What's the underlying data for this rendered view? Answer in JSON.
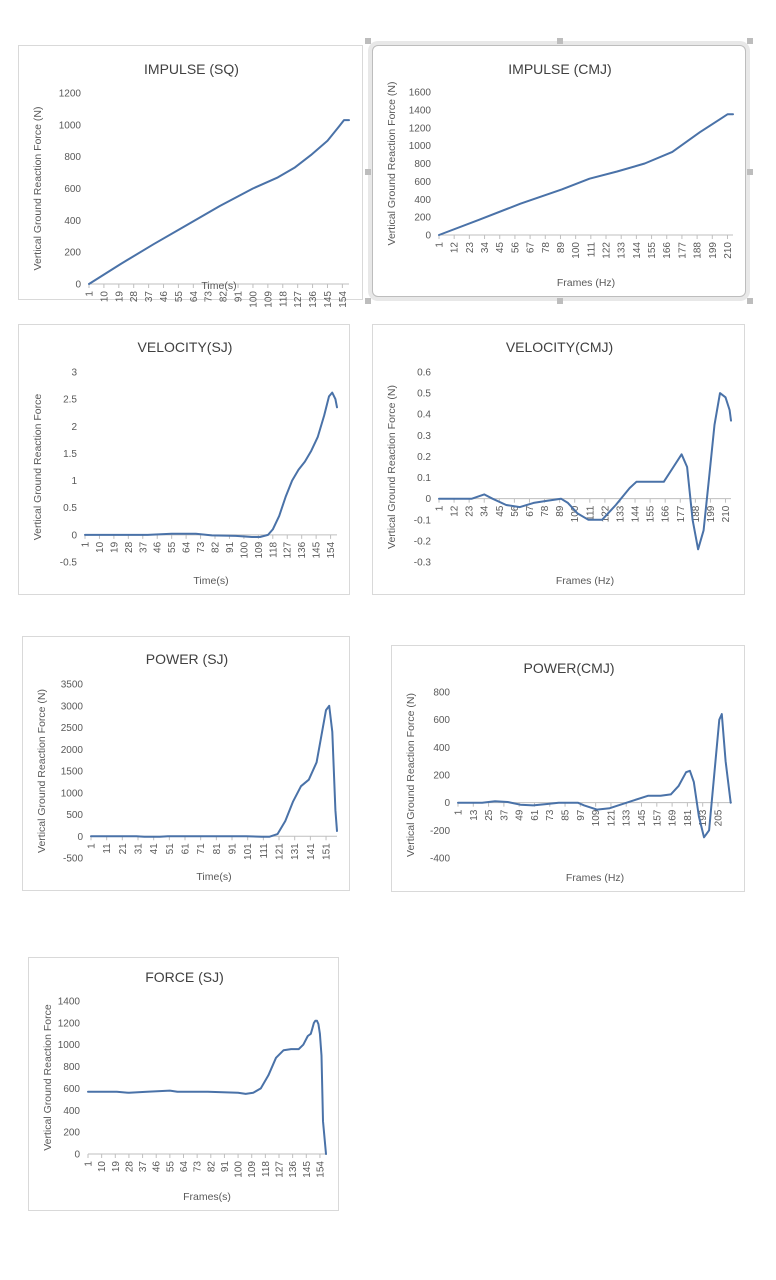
{
  "colors": {
    "line": "#4a72a8",
    "axis": "#bfbfbf",
    "grid": "#d9d9d9",
    "text": "#595959",
    "title": "#404040"
  },
  "chart_data": [
    {
      "id": "impulse-sq",
      "type": "line",
      "title": "IMPULSE (SQ)",
      "xlabel": "Time(s)",
      "ylabel": "Vertical Ground Reaction Force (N)",
      "ylim": [
        0,
        1200
      ],
      "yticks": [
        0,
        200,
        400,
        600,
        800,
        1000,
        1200
      ],
      "xmin": 1,
      "xmax": 158,
      "xticks": [
        "1",
        "10",
        "19",
        "28",
        "37",
        "46",
        "55",
        "64",
        "73",
        "82",
        "91",
        "100",
        "109",
        "118",
        "127",
        "136",
        "145",
        "154"
      ],
      "x": [
        1,
        20,
        40,
        60,
        80,
        100,
        115,
        125,
        135,
        145,
        152,
        155,
        158
      ],
      "y": [
        0,
        125,
        250,
        370,
        490,
        600,
        670,
        730,
        810,
        900,
        990,
        1030,
        1030
      ]
    },
    {
      "id": "impulse-cmj",
      "type": "line",
      "title": "IMPULSE (CMJ)",
      "xlabel": "Frames (Hz)",
      "ylabel": "Vertical Ground Reaction Force (N)",
      "ylim": [
        0,
        1600
      ],
      "yticks": [
        0,
        200,
        400,
        600,
        800,
        1000,
        1200,
        1400,
        1600
      ],
      "xmin": 1,
      "xmax": 214,
      "xticks": [
        "1",
        "12",
        "23",
        "34",
        "45",
        "56",
        "67",
        "78",
        "89",
        "100",
        "111",
        "122",
        "133",
        "144",
        "155",
        "166",
        "177",
        "188",
        "199",
        "210"
      ],
      "x": [
        1,
        30,
        60,
        90,
        110,
        130,
        150,
        170,
        190,
        205,
        210,
        214
      ],
      "y": [
        0,
        170,
        350,
        510,
        630,
        710,
        800,
        930,
        1150,
        1300,
        1350,
        1350
      ]
    },
    {
      "id": "velocity-sj",
      "type": "line",
      "title": "VELOCITY(SJ)",
      "xlabel": "Time(s)",
      "ylabel": "Vertical Ground Reaction Force",
      "ylim": [
        -0.5,
        3
      ],
      "yticks": [
        -0.5,
        0,
        0.5,
        1,
        1.5,
        2,
        2.5,
        3
      ],
      "ytickLabels": [
        "-0.5",
        "0",
        "0.5",
        "1",
        "1.5",
        "2",
        "2.5",
        "3"
      ],
      "xmin": 1,
      "xmax": 158,
      "xticks": [
        "1",
        "10",
        "19",
        "28",
        "37",
        "46",
        "55",
        "64",
        "73",
        "82",
        "91",
        "100",
        "109",
        "118",
        "127",
        "136",
        "145",
        "154"
      ],
      "x": [
        1,
        40,
        55,
        70,
        80,
        95,
        105,
        110,
        115,
        118,
        122,
        126,
        130,
        134,
        138,
        142,
        146,
        150,
        153,
        155,
        157,
        158
      ],
      "y": [
        0,
        0,
        0.02,
        0.02,
        -0.01,
        -0.02,
        -0.04,
        -0.04,
        0,
        0.1,
        0.35,
        0.7,
        1.0,
        1.2,
        1.35,
        1.55,
        1.8,
        2.2,
        2.55,
        2.62,
        2.5,
        2.35
      ]
    },
    {
      "id": "velocity-cmj",
      "type": "line",
      "title": "VELOCITY(CMJ)",
      "xlabel": "Frames (Hz)",
      "ylabel": "Vertical Ground Reaction Force (N)",
      "ylim": [
        -0.3,
        0.6
      ],
      "yticks": [
        -0.3,
        -0.2,
        -0.1,
        0,
        0.1,
        0.2,
        0.3,
        0.4,
        0.5,
        0.6
      ],
      "ytickLabels": [
        "-0.3",
        "-0.2",
        "-0.1",
        "0",
        "0.1",
        "0.2",
        "0.3",
        "0.4",
        "0.5",
        "0.6"
      ],
      "xmin": 1,
      "xmax": 214,
      "xticks": [
        "1",
        "12",
        "23",
        "34",
        "45",
        "56",
        "67",
        "78",
        "89",
        "100",
        "111",
        "122",
        "133",
        "144",
        "155",
        "166",
        "177",
        "188",
        "199",
        "210"
      ],
      "x": [
        1,
        25,
        34,
        40,
        50,
        60,
        70,
        80,
        90,
        95,
        102,
        110,
        120,
        130,
        140,
        145,
        155,
        165,
        172,
        178,
        182,
        186,
        190,
        194,
        198,
        202,
        206,
        210,
        213,
        214
      ],
      "y": [
        0,
        0,
        0.02,
        0,
        -0.03,
        -0.04,
        -0.02,
        -0.01,
        0,
        -0.02,
        -0.07,
        -0.1,
        -0.1,
        -0.03,
        0.05,
        0.08,
        0.08,
        0.08,
        0.15,
        0.21,
        0.15,
        -0.1,
        -0.24,
        -0.15,
        0.1,
        0.35,
        0.5,
        0.48,
        0.42,
        0.37
      ]
    },
    {
      "id": "power-sj",
      "type": "line",
      "title": "POWER (SJ)",
      "xlabel": "Time(s)",
      "ylabel": "Vertical Ground Reaction Force (N)",
      "ylim": [
        -500,
        3500
      ],
      "yticks": [
        -500,
        0,
        500,
        1000,
        1500,
        2000,
        2500,
        3000,
        3500
      ],
      "xmin": 1,
      "xmax": 158,
      "xticks": [
        "1",
        "11",
        "21",
        "31",
        "41",
        "51",
        "61",
        "71",
        "81",
        "91",
        "101",
        "111",
        "121",
        "131",
        "141",
        "151"
      ],
      "x": [
        1,
        30,
        35,
        45,
        50,
        70,
        100,
        110,
        115,
        120,
        125,
        130,
        135,
        140,
        145,
        148,
        151,
        153,
        155,
        157,
        158
      ],
      "y": [
        0,
        0,
        -10,
        -10,
        0,
        0,
        0,
        -10,
        -10,
        50,
        350,
        800,
        1150,
        1300,
        1700,
        2300,
        2900,
        3000,
        2400,
        600,
        120
      ]
    },
    {
      "id": "power-cmj",
      "type": "line",
      "title": "POWER(CMJ)",
      "xlabel": "Frames (Hz)",
      "ylabel": "Vertical Ground Reaction Force (N)",
      "ylim": [
        -400,
        800
      ],
      "yticks": [
        -400,
        -200,
        0,
        200,
        400,
        600,
        800
      ],
      "ytickLabels": [
        "-400",
        "-200",
        "0",
        "200",
        "400",
        "600",
        "800"
      ],
      "xmin": 1,
      "xmax": 216,
      "xticks": [
        "1",
        "13",
        "25",
        "37",
        "49",
        "61",
        "73",
        "85",
        "97",
        "109",
        "121",
        "133",
        "145",
        "157",
        "169",
        "181",
        "193",
        "205"
      ],
      "x": [
        1,
        20,
        30,
        40,
        50,
        60,
        70,
        80,
        95,
        100,
        110,
        120,
        130,
        140,
        150,
        160,
        168,
        174,
        180,
        183,
        186,
        190,
        194,
        198,
        202,
        206,
        208,
        211,
        215
      ],
      "y": [
        0,
        0,
        10,
        5,
        -15,
        -20,
        -10,
        0,
        0,
        -20,
        -50,
        -40,
        -10,
        20,
        50,
        50,
        60,
        120,
        220,
        230,
        150,
        -100,
        -250,
        -200,
        200,
        600,
        640,
        300,
        0
      ]
    },
    {
      "id": "force-sj",
      "type": "line",
      "title": "FORCE (SJ)",
      "xlabel": "Frames(s)",
      "ylabel": "Vertical Ground Reaction Force",
      "ylim": [
        0,
        1400
      ],
      "yticks": [
        0,
        200,
        400,
        600,
        800,
        1000,
        1200,
        1400
      ],
      "ytickLabels": [
        "0",
        "200",
        "400",
        "600",
        "800",
        "1000",
        "1200",
        "1400"
      ],
      "xmin": 1,
      "xmax": 158,
      "xticks": [
        "1",
        "10",
        "19",
        "28",
        "37",
        "46",
        "55",
        "64",
        "73",
        "82",
        "91",
        "100",
        "109",
        "118",
        "127",
        "136",
        "145",
        "154"
      ],
      "x": [
        1,
        10,
        20,
        28,
        40,
        55,
        60,
        65,
        80,
        90,
        100,
        105,
        110,
        115,
        120,
        125,
        130,
        135,
        140,
        143,
        146,
        148,
        149,
        150,
        151,
        152,
        153,
        154,
        155,
        156,
        158
      ],
      "y": [
        570,
        570,
        570,
        560,
        570,
        580,
        570,
        570,
        570,
        565,
        560,
        550,
        560,
        600,
        720,
        880,
        950,
        960,
        960,
        1000,
        1080,
        1100,
        1150,
        1200,
        1220,
        1220,
        1190,
        1100,
        900,
        300,
        0
      ]
    }
  ]
}
